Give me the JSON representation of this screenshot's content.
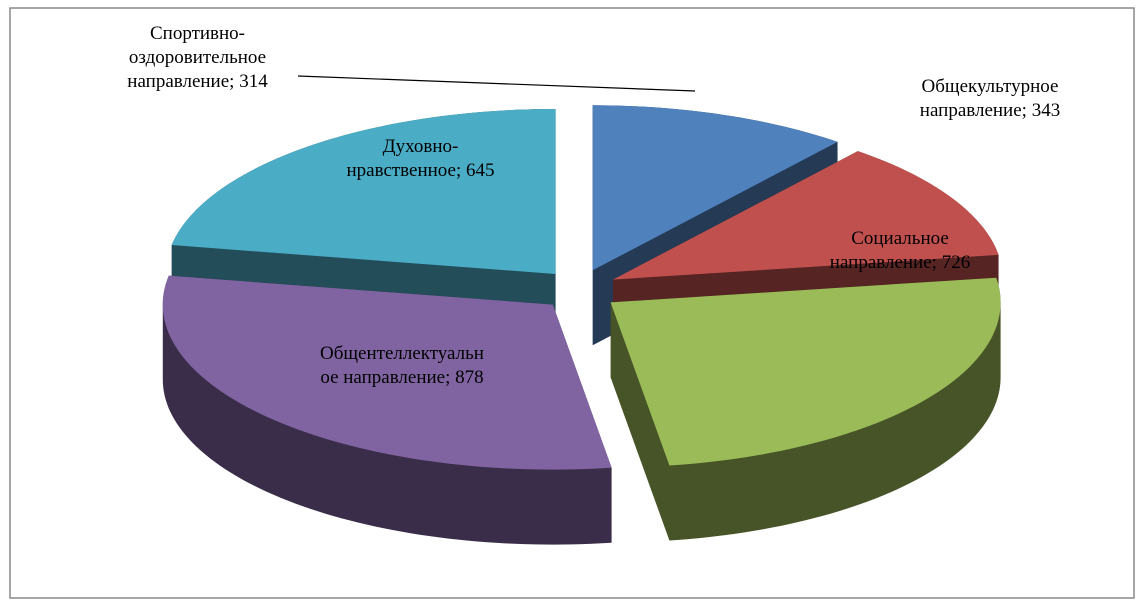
{
  "chart_data": {
    "type": "pie",
    "categories": [
      "Спортивно-оздоровительное направление",
      "Общекультурное направление",
      "Социальное направление",
      "Общентеллектуальное направление",
      "Духовно-нравственное"
    ],
    "values": [
      314,
      343,
      726,
      878,
      645
    ],
    "colors": [
      "#4f81bd",
      "#c0504d",
      "#9bbb59",
      "#8064a2",
      "#4bacc6"
    ],
    "label_separator": "; "
  }
}
